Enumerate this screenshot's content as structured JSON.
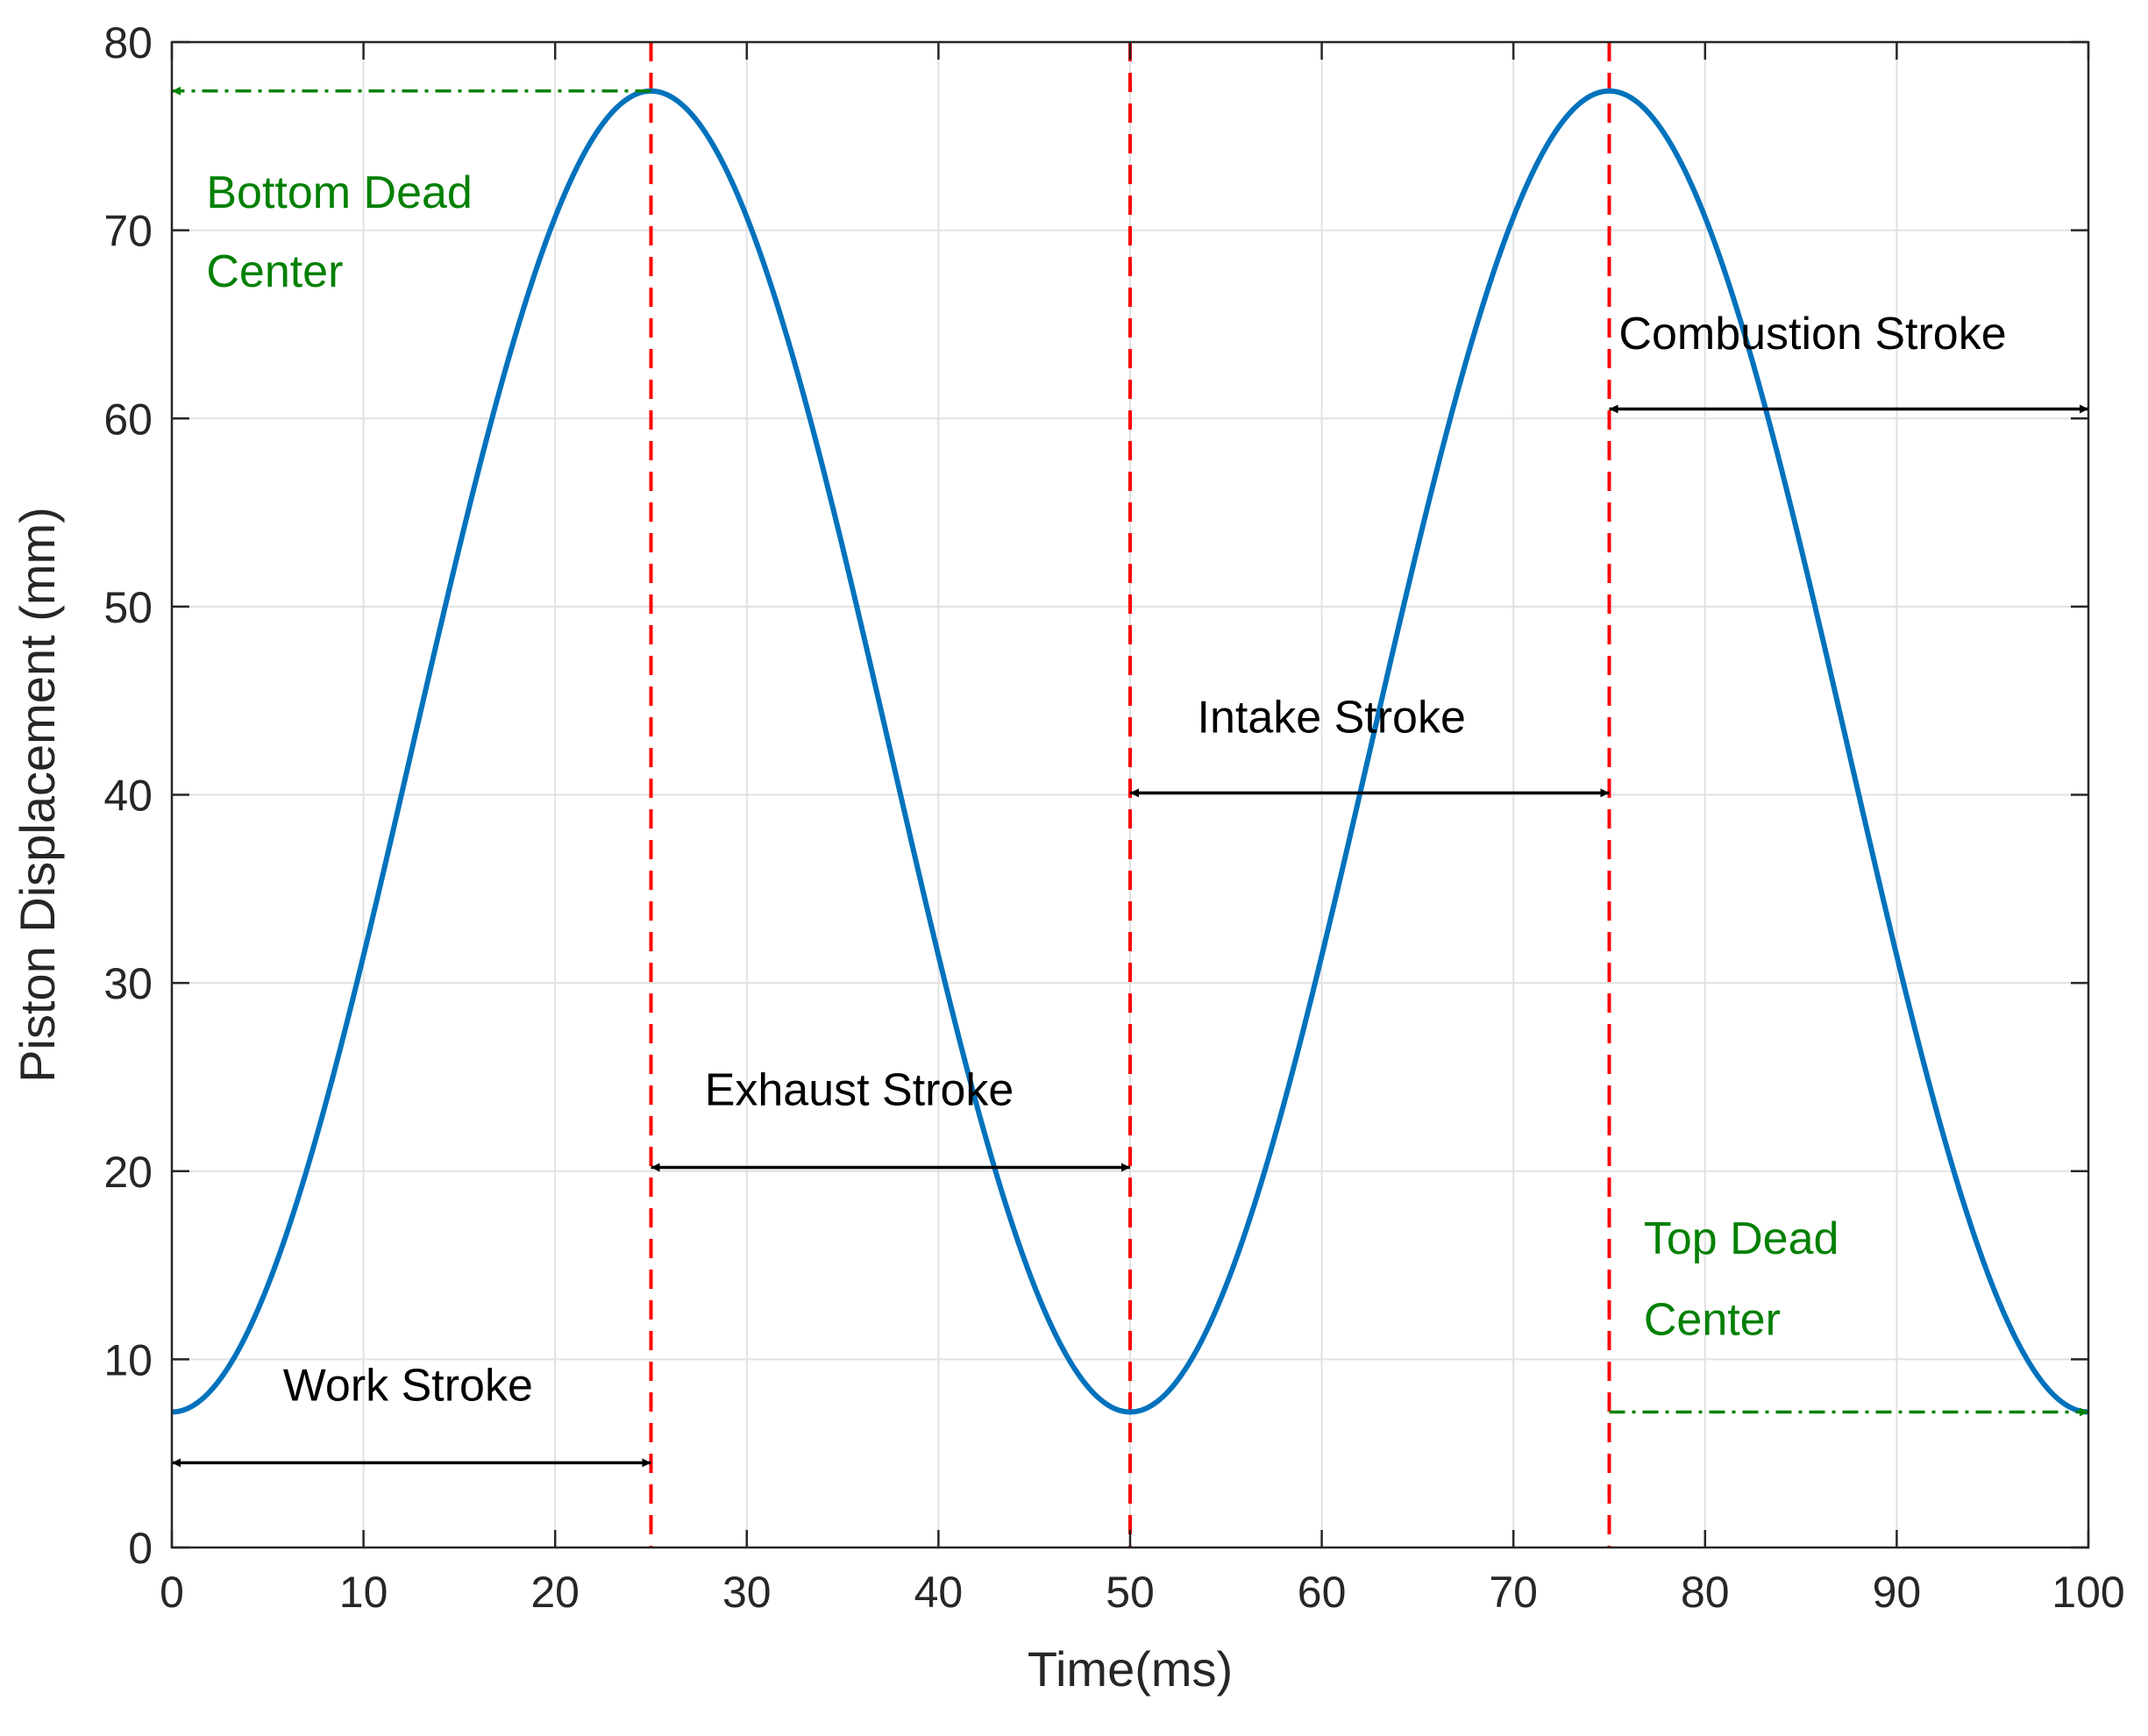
{
  "chart_data": {
    "type": "line",
    "title": "",
    "xlabel": "Time(ms)",
    "ylabel": "Piston Displacement (mm)",
    "xlim": [
      0,
      100
    ],
    "ylim": [
      0,
      80
    ],
    "xticks": [
      0,
      10,
      20,
      30,
      40,
      50,
      60,
      70,
      80,
      90,
      100
    ],
    "yticks": [
      0,
      10,
      20,
      30,
      40,
      50,
      60,
      70,
      80
    ],
    "grid": true,
    "series": [
      {
        "color": "#0072BD",
        "function": "cosine",
        "min": 7.2,
        "max": 77.4,
        "period": 50,
        "peaks_at": [
          25,
          75
        ],
        "troughs_at": [
          0,
          50,
          100
        ]
      }
    ],
    "vlines": [
      {
        "x": 25,
        "color": "#FF0000",
        "style": "dashed"
      },
      {
        "x": 50,
        "color": "#FF0000",
        "style": "dashed"
      },
      {
        "x": 75,
        "color": "#FF0000",
        "style": "dashed"
      }
    ],
    "annotations": [
      {
        "text": "Work Stroke",
        "x1": 0,
        "x2": 25,
        "y": 4.5,
        "text_x": 5.8,
        "text_y": 7.8,
        "color": "#000000",
        "arrow": "double"
      },
      {
        "text": "Exhaust Stroke",
        "x1": 25,
        "x2": 50,
        "y": 20.2,
        "text_x": 27.8,
        "text_y": 23.5,
        "color": "#000000",
        "arrow": "double"
      },
      {
        "text": "Intake Stroke",
        "x1": 50,
        "x2": 75,
        "y": 40.1,
        "text_x": 53.5,
        "text_y": 43.3,
        "color": "#000000",
        "arrow": "double"
      },
      {
        "text": "Combustion Stroke",
        "x1": 75,
        "x2": 100,
        "y": 60.5,
        "text_x": 75.5,
        "text_y": 63.7,
        "color": "#000000",
        "arrow": "double"
      },
      {
        "text_lines": [
          "Bottom Dead",
          "Center"
        ],
        "x1": 25,
        "x2": 0,
        "y": 77.4,
        "text_x": 1.8,
        "text_y": [
          71.2,
          67.0
        ],
        "color": "#008000",
        "arrow": "single-dashdot"
      },
      {
        "text_lines": [
          "Top Dead",
          "Center"
        ],
        "x1": 75,
        "x2": 100,
        "y": 7.2,
        "text_x": 76.8,
        "text_y": [
          15.6,
          11.3
        ],
        "color": "#008000",
        "arrow": "single-dashdot"
      }
    ]
  }
}
